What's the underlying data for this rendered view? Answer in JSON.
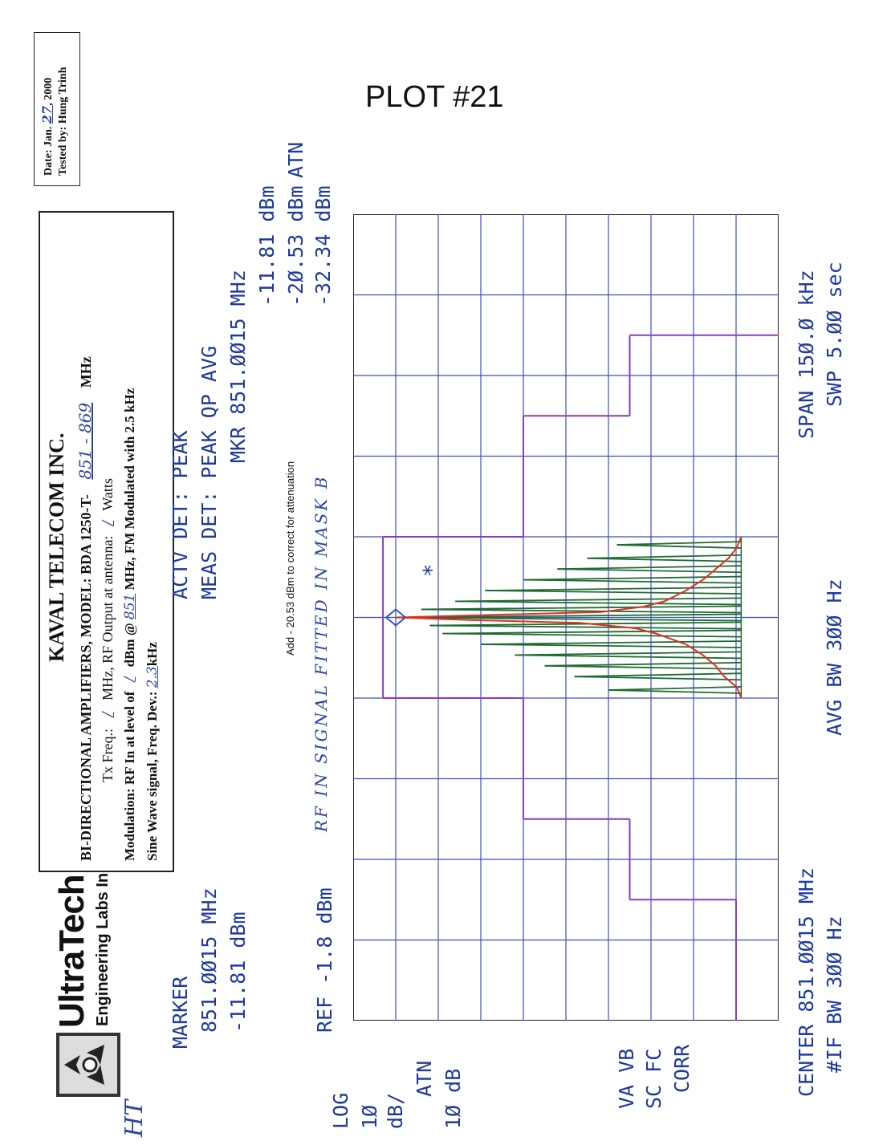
{
  "plot_title": "PLOT #21",
  "date_box": {
    "date_prefix": "Date: Jan.",
    "date_day": "27",
    "date_year": ", 2000",
    "tested_by": "Tested by:  Hung Trinh"
  },
  "logo": {
    "brand": "UltraTech",
    "sub": "Engineering Labs Inc.",
    "initials": "HT"
  },
  "header": {
    "company": "KAVAL TELECOM INC.",
    "model_line_prefix": "BI-DIRECTIONAL AMPLIFIERS, MODEL: BDA 1250-T-",
    "model_handwritten": "851 - 869",
    "model_unit": "MHz",
    "tx_prefix": "Tx Freq.:",
    "tx_hand": "/",
    "tx_mid": "MHz, RF Output at antenna:",
    "rf_hand": "/",
    "rf_unit": "Watts",
    "mod_prefix": "Modulation: RF In at level of",
    "mod_level_hand": "/",
    "mod_mid": "dBm @",
    "mod_freq_hand": "851",
    "mod_suffix": "MHz, FM Modulated with 2.5 kHz",
    "sine_prefix": "Sine Wave signal, Freq. Dev.:",
    "sine_hand": "2.3",
    "sine_unit": "kHz"
  },
  "analyzer": {
    "marker_label": "MARKER",
    "marker_freq": "851.ØØ15 MHz",
    "marker_level": "-11.81 dBm",
    "actv_det": "ACTV DET:  PEAK",
    "meas_det": "MEAS DET:  PEAK QP AVG",
    "mkr": "MKR 851.ØØ15 MHz",
    "mkr_level": "-11.81 dBm",
    "atn_corr": "-2Ø.53 dBm",
    "atn_label": "ATN",
    "result": "-32.34 dBm",
    "note": "Add - 20.53 dBm to correct for attenuation",
    "hand_note": "RF IN SIGNAL FITTED IN MASK B",
    "ref": "REF -1.8 dBm",
    "log": "LOG",
    "scale_num": "1Ø",
    "scale_unit": "dB/",
    "atn_left": "ATN",
    "atn_val": "1Ø dB",
    "va_vb": "VA VB",
    "sc_fc": "SC FC",
    "corr": "CORR",
    "center": "CENTER 851.ØØ15 MHz",
    "if_bw": "#IF BW 3ØØ Hz",
    "avg_bw": "AVG BW 3ØØ Hz",
    "span": "SPAN 15Ø.Ø kHz",
    "swp": "SWP 5.ØØ sec"
  },
  "chart_data": {
    "type": "line",
    "title": "",
    "xlabel": "",
    "ylabel": "",
    "x_unit": "kHz offset from 851.0015 MHz",
    "xlim": [
      -75,
      75
    ],
    "ylim": [
      -101.8,
      -1.8
    ],
    "grid": true,
    "colors": {
      "grid": "#3a4fc4",
      "mask": "#8a3cc4",
      "signal": "#1f6b32",
      "noise": "#e03020",
      "text": "#1e3a9c"
    },
    "mask_segments": [
      {
        "x": [
          -75,
          -52.5
        ],
        "y": [
          -91.8,
          -91.8
        ]
      },
      {
        "x": [
          -52.5,
          -52.5
        ],
        "y": [
          -91.8,
          -66.8
        ]
      },
      {
        "x": [
          -52.5,
          -37.5
        ],
        "y": [
          -66.8,
          -66.8
        ]
      },
      {
        "x": [
          -37.5,
          -37.5
        ],
        "y": [
          -66.8,
          -41.8
        ]
      },
      {
        "x": [
          -37.5,
          -15
        ],
        "y": [
          -41.8,
          -41.8
        ]
      },
      {
        "x": [
          -15,
          -15
        ],
        "y": [
          -41.8,
          -8.8
        ]
      },
      {
        "x": [
          -15,
          15
        ],
        "y": [
          -8.8,
          -8.8
        ]
      },
      {
        "x": [
          15,
          15
        ],
        "y": [
          -8.8,
          -41.8
        ]
      },
      {
        "x": [
          15,
          37.5
        ],
        "y": [
          -41.8,
          -41.8
        ]
      },
      {
        "x": [
          37.5,
          37.5
        ],
        "y": [
          -41.8,
          -66.8
        ]
      },
      {
        "x": [
          37.5,
          52.5
        ],
        "y": [
          -66.8,
          -66.8
        ]
      },
      {
        "x": [
          52.5,
          52.5
        ],
        "y": [
          -66.8,
          -101.8
        ]
      }
    ],
    "signal_peaks": {
      "x": [
        -13.5,
        -11,
        -9,
        -7,
        -5,
        -3,
        -1.5,
        0,
        1.5,
        3,
        5,
        7,
        9,
        11,
        13.5
      ],
      "y": [
        -61.8,
        -53.8,
        -46.8,
        -39.8,
        -31.8,
        -22.8,
        -19.8,
        -11.81,
        -17.8,
        -25.8,
        -32.8,
        -41.8,
        -49.8,
        -56.8,
        -63.8
      ]
    },
    "signal_floor": -93,
    "noise_trace": {
      "x": [
        -15,
        -13,
        -11,
        -9,
        -7,
        -5,
        -3,
        -2,
        -1,
        -0.5,
        0,
        0.5,
        1,
        2,
        3,
        5,
        7,
        9,
        11,
        13,
        15
      ],
      "y": [
        -93,
        -92,
        -89,
        -87,
        -84,
        -80,
        -73,
        -68,
        -55,
        -30,
        -11.81,
        -35,
        -60,
        -70,
        -75,
        -80,
        -84,
        -87,
        -90,
        -92,
        -93
      ]
    },
    "marker": {
      "x": 0,
      "y": -11.81,
      "label": "*"
    }
  }
}
